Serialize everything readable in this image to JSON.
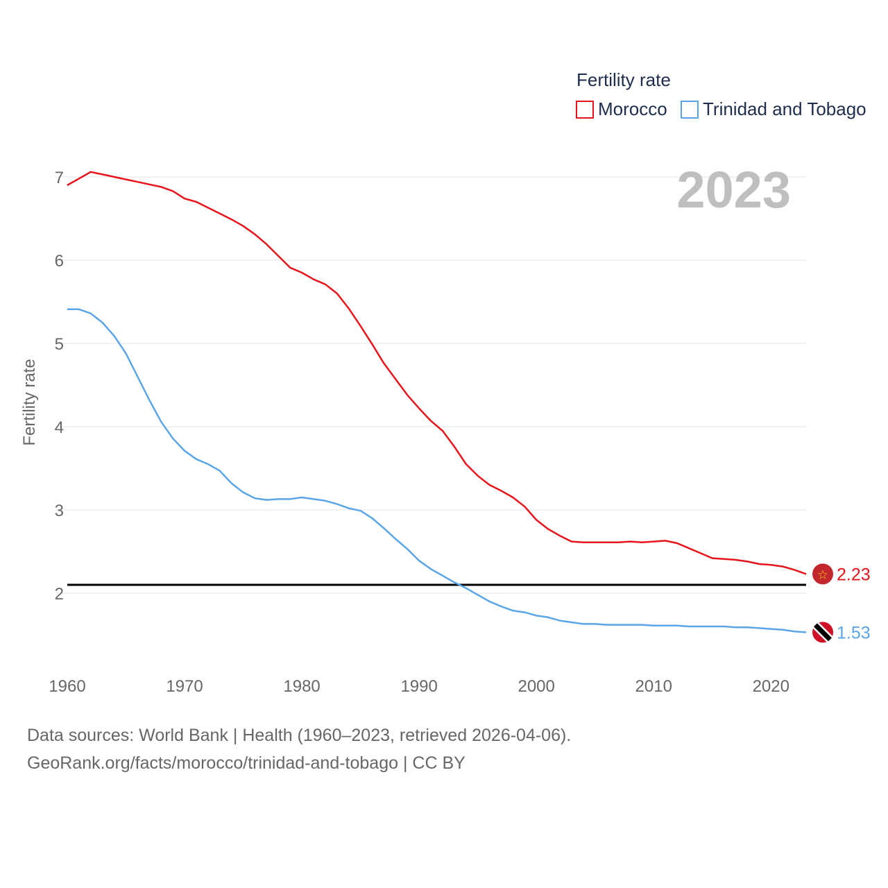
{
  "chart_data": {
    "type": "line",
    "legend_title": "Fertility rate",
    "ylabel": "Fertility rate",
    "year_stamp": "2023",
    "x": [
      1960,
      1961,
      1962,
      1963,
      1964,
      1965,
      1966,
      1967,
      1968,
      1969,
      1970,
      1971,
      1972,
      1973,
      1974,
      1975,
      1976,
      1977,
      1978,
      1979,
      1980,
      1981,
      1982,
      1983,
      1984,
      1985,
      1986,
      1987,
      1988,
      1989,
      1990,
      1991,
      1992,
      1993,
      1994,
      1995,
      1996,
      1997,
      1998,
      1999,
      2000,
      2001,
      2002,
      2003,
      2004,
      2005,
      2006,
      2007,
      2008,
      2009,
      2010,
      2011,
      2012,
      2013,
      2014,
      2015,
      2016,
      2017,
      2018,
      2019,
      2020,
      2021,
      2022,
      2023
    ],
    "xlim": [
      1960,
      2023
    ],
    "ylim": [
      1.0,
      7.5
    ],
    "xticks": [
      "1960",
      "1970",
      "1980",
      "1990",
      "2000",
      "2010",
      "2020"
    ],
    "yticks": [
      "2",
      "3",
      "4",
      "5",
      "6",
      "7"
    ],
    "reference_line": 2.1,
    "series": [
      {
        "name": "Morocco",
        "color": "#e8141b",
        "end_label": "2.23",
        "flag_icon": "morocco-flag-icon",
        "values": [
          6.9,
          6.98,
          7.06,
          7.03,
          7.0,
          6.97,
          6.94,
          6.91,
          6.88,
          6.83,
          6.74,
          6.7,
          6.63,
          6.56,
          6.49,
          6.41,
          6.31,
          6.19,
          6.05,
          5.91,
          5.85,
          5.77,
          5.71,
          5.6,
          5.42,
          5.21,
          4.99,
          4.76,
          4.57,
          4.38,
          4.22,
          4.07,
          3.95,
          3.76,
          3.55,
          3.41,
          3.3,
          3.23,
          3.15,
          3.04,
          2.88,
          2.77,
          2.69,
          2.62,
          2.61,
          2.61,
          2.61,
          2.61,
          2.62,
          2.61,
          2.62,
          2.63,
          2.6,
          2.54,
          2.48,
          2.42,
          2.41,
          2.4,
          2.38,
          2.35,
          2.34,
          2.32,
          2.28,
          2.23
        ]
      },
      {
        "name": "Trinidad and Tobago",
        "color": "#5aa5e6",
        "end_label": "1.53",
        "flag_icon": "trinidad-flag-icon",
        "values": [
          5.41,
          5.41,
          5.36,
          5.25,
          5.09,
          4.88,
          4.6,
          4.32,
          4.06,
          3.86,
          3.71,
          3.61,
          3.55,
          3.47,
          3.32,
          3.21,
          3.14,
          3.12,
          3.13,
          3.13,
          3.15,
          3.13,
          3.11,
          3.07,
          3.02,
          2.99,
          2.9,
          2.78,
          2.65,
          2.53,
          2.39,
          2.29,
          2.21,
          2.13,
          2.06,
          1.98,
          1.9,
          1.84,
          1.79,
          1.77,
          1.73,
          1.71,
          1.67,
          1.65,
          1.63,
          1.63,
          1.62,
          1.62,
          1.62,
          1.62,
          1.61,
          1.61,
          1.61,
          1.6,
          1.6,
          1.6,
          1.6,
          1.59,
          1.59,
          1.58,
          1.57,
          1.56,
          1.54,
          1.53
        ]
      }
    ]
  },
  "source": {
    "line1": "Data sources: World Bank | Health (1960–2023, retrieved 2026-04-06).",
    "line2": "GeoRank.org/facts/morocco/trinidad-and-tobago | CC BY"
  }
}
